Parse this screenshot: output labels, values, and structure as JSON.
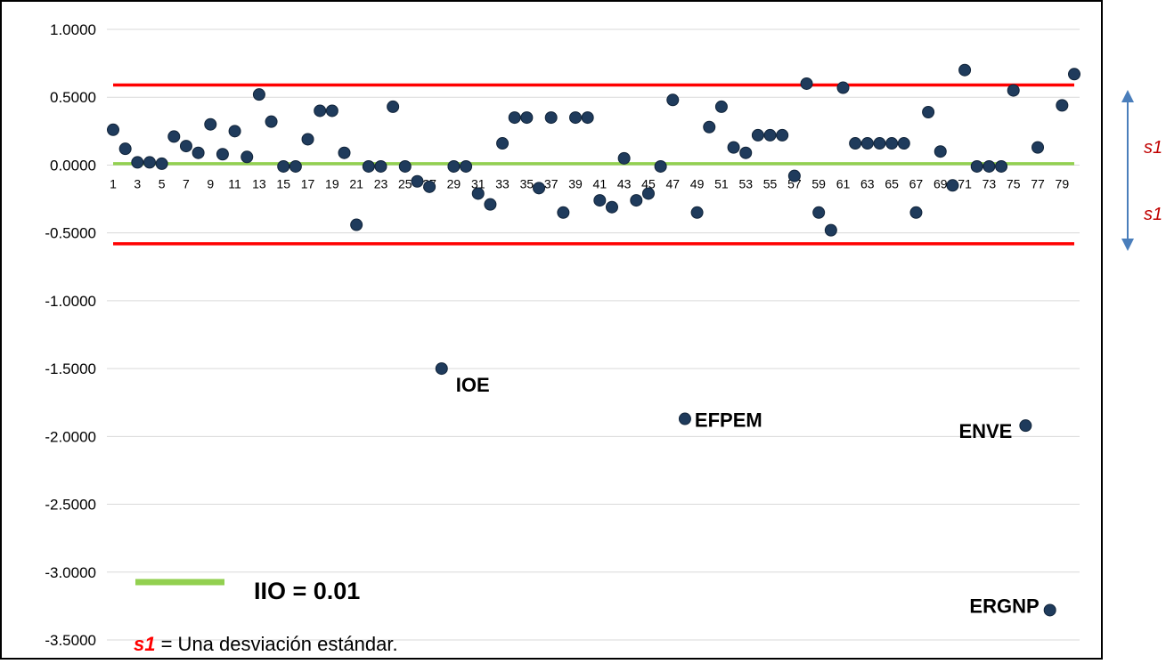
{
  "chart_data": {
    "type": "scatter",
    "title": "",
    "xlabel": "",
    "ylabel": "",
    "ylim": [
      -3.5,
      1.0
    ],
    "xlim": [
      1,
      80
    ],
    "y_ticks": [
      "1.0000",
      "0.5000",
      "0.0000",
      "-0.5000",
      "-1.0000",
      "-1.5000",
      "-2.0000",
      "-2.5000",
      "-3.0000",
      "-3.5000"
    ],
    "x_ticks": [
      1,
      3,
      5,
      7,
      9,
      11,
      13,
      15,
      17,
      19,
      21,
      23,
      25,
      27,
      29,
      31,
      33,
      35,
      37,
      39,
      41,
      43,
      45,
      47,
      49,
      51,
      53,
      55,
      57,
      59,
      61,
      63,
      65,
      67,
      69,
      71,
      73,
      75,
      77,
      79
    ],
    "grid": true,
    "x": [
      1,
      2,
      3,
      4,
      5,
      6,
      7,
      8,
      9,
      10,
      11,
      12,
      13,
      14,
      15,
      16,
      17,
      18,
      19,
      20,
      21,
      22,
      23,
      24,
      25,
      26,
      27,
      28,
      29,
      30,
      31,
      32,
      33,
      34,
      35,
      36,
      37,
      38,
      39,
      40,
      41,
      42,
      43,
      44,
      45,
      46,
      47,
      48,
      49,
      50,
      51,
      52,
      53,
      54,
      55,
      56,
      57,
      58,
      59,
      60,
      61,
      62,
      63,
      64,
      65,
      66,
      67,
      68,
      69,
      70,
      71,
      72,
      73,
      74,
      75,
      76,
      77,
      78,
      79,
      80
    ],
    "y": [
      0.26,
      0.12,
      0.02,
      0.02,
      0.01,
      0.21,
      0.14,
      0.09,
      0.3,
      0.08,
      0.25,
      0.06,
      0.52,
      0.32,
      -0.01,
      -0.01,
      0.19,
      0.4,
      0.4,
      0.09,
      -0.44,
      -0.01,
      -0.01,
      0.43,
      -0.01,
      -0.12,
      -0.16,
      -1.5,
      -0.01,
      -0.01,
      -0.21,
      -0.29,
      0.16,
      0.35,
      0.35,
      -0.17,
      0.35,
      -0.35,
      0.35,
      0.35,
      -0.26,
      -0.31,
      0.05,
      -0.26,
      -0.21,
      -0.01,
      0.48,
      -1.87,
      -0.35,
      0.28,
      0.43,
      0.13,
      0.09,
      0.22,
      0.22,
      0.22,
      -0.08,
      0.6,
      -0.35,
      -0.48,
      0.57,
      0.16,
      0.16,
      0.16,
      0.16,
      0.16,
      -0.35,
      0.39,
      0.1,
      -0.15,
      0.7,
      -0.01,
      -0.01,
      -0.01,
      0.55,
      -1.92,
      0.13,
      -3.28,
      0.44,
      0.67
    ],
    "point_color": "#1f3b5c",
    "reference_lines": [
      {
        "value": 0.01,
        "color": "#92d050"
      },
      {
        "value": 0.59,
        "color": "#ff0000"
      },
      {
        "value": -0.58,
        "color": "#ff0000"
      }
    ],
    "annotations": [
      {
        "text": "IOE",
        "x": 28,
        "y": -1.5,
        "anchor": "right-below"
      },
      {
        "text": "EFPEM",
        "x": 48,
        "y": -1.87,
        "anchor": "right"
      },
      {
        "text": "ENVE",
        "x": 76,
        "y": -1.92,
        "anchor": "left"
      },
      {
        "text": "ERGNP",
        "x": 78,
        "y": -3.28,
        "anchor": "left-above"
      }
    ],
    "legend": {
      "line_label": "IIO = 0.01",
      "line_color": "#92d050",
      "s1_symbol": "s1",
      "s1_text": " = Una desviación estándar."
    },
    "side_arrow": {
      "upper_label": "s1",
      "lower_label": "s1",
      "color": "#4a7ebb",
      "label_color": "#c00000"
    }
  }
}
